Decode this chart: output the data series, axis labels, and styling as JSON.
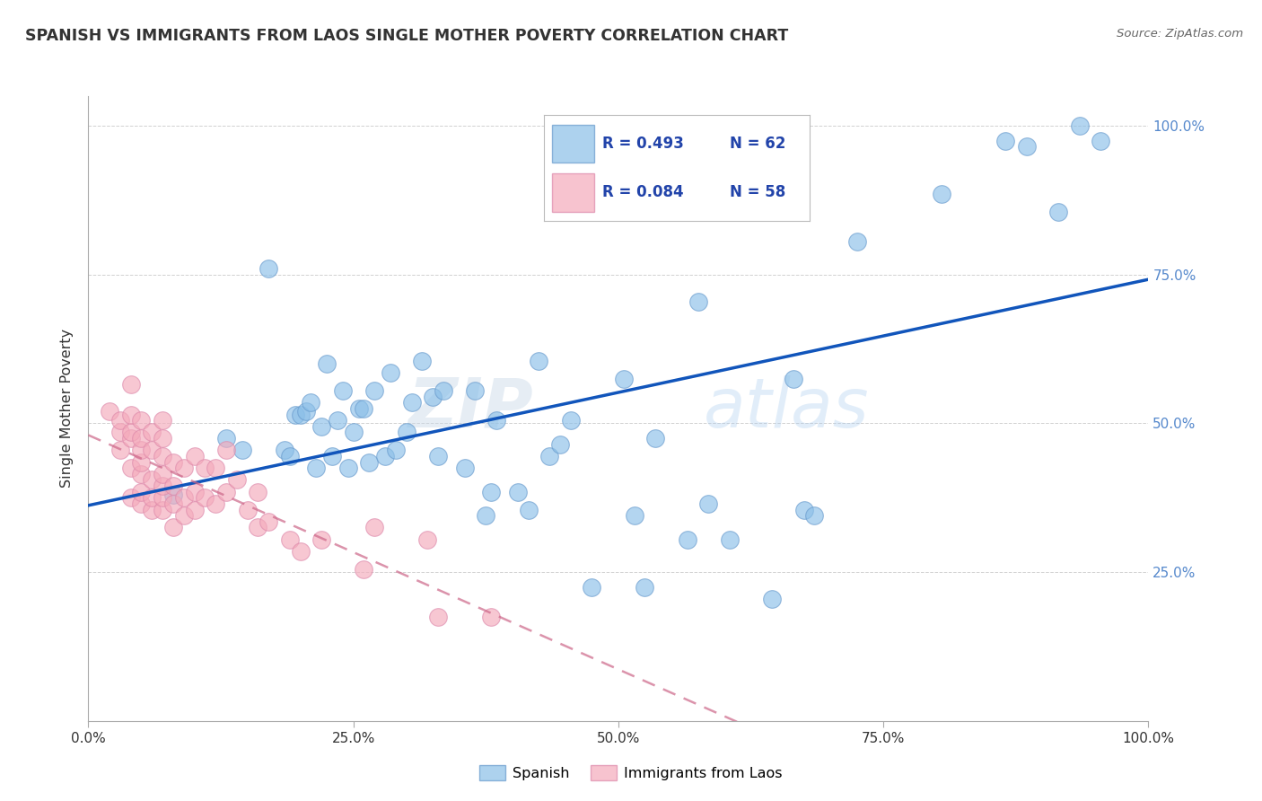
{
  "title": "SPANISH VS IMMIGRANTS FROM LAOS SINGLE MOTHER POVERTY CORRELATION CHART",
  "source": "Source: ZipAtlas.com",
  "ylabel": "Single Mother Poverty",
  "watermark_part1": "ZIP",
  "watermark_part2": "atlas",
  "blue_color": "#8bbfe8",
  "pink_color": "#f4aabb",
  "blue_edge_color": "#6699cc",
  "pink_edge_color": "#dd88aa",
  "blue_line_color": "#1155bb",
  "pink_line_color": "#cc6688",
  "legend_R1": "R = 0.493",
  "legend_N1": "N = 62",
  "legend_R2": "R = 0.084",
  "legend_N2": "N = 58",
  "legend_text_color": "#2244aa",
  "legend_text_dark": "#222222",
  "blue_scatter_x": [
    0.08,
    0.13,
    0.145,
    0.17,
    0.185,
    0.19,
    0.195,
    0.2,
    0.205,
    0.21,
    0.215,
    0.22,
    0.225,
    0.23,
    0.235,
    0.24,
    0.245,
    0.25,
    0.255,
    0.26,
    0.265,
    0.27,
    0.28,
    0.285,
    0.29,
    0.3,
    0.305,
    0.315,
    0.325,
    0.33,
    0.335,
    0.355,
    0.365,
    0.375,
    0.38,
    0.385,
    0.405,
    0.415,
    0.425,
    0.435,
    0.445,
    0.455,
    0.475,
    0.505,
    0.515,
    0.525,
    0.535,
    0.565,
    0.575,
    0.585,
    0.605,
    0.645,
    0.665,
    0.675,
    0.685,
    0.725,
    0.805,
    0.865,
    0.885,
    0.915,
    0.935,
    0.955
  ],
  "blue_scatter_y": [
    0.38,
    0.475,
    0.455,
    0.76,
    0.455,
    0.445,
    0.515,
    0.515,
    0.52,
    0.535,
    0.425,
    0.495,
    0.6,
    0.445,
    0.505,
    0.555,
    0.425,
    0.485,
    0.525,
    0.525,
    0.435,
    0.555,
    0.445,
    0.585,
    0.455,
    0.485,
    0.535,
    0.605,
    0.545,
    0.445,
    0.555,
    0.425,
    0.555,
    0.345,
    0.385,
    0.505,
    0.385,
    0.355,
    0.605,
    0.445,
    0.465,
    0.505,
    0.225,
    0.575,
    0.345,
    0.225,
    0.475,
    0.305,
    0.705,
    0.365,
    0.305,
    0.205,
    0.575,
    0.355,
    0.345,
    0.805,
    0.885,
    0.975,
    0.965,
    0.855,
    1.0,
    0.975
  ],
  "pink_scatter_x": [
    0.02,
    0.03,
    0.03,
    0.03,
    0.04,
    0.04,
    0.04,
    0.04,
    0.04,
    0.04,
    0.05,
    0.05,
    0.05,
    0.05,
    0.05,
    0.05,
    0.05,
    0.06,
    0.06,
    0.06,
    0.06,
    0.06,
    0.07,
    0.07,
    0.07,
    0.07,
    0.07,
    0.07,
    0.07,
    0.08,
    0.08,
    0.08,
    0.08,
    0.09,
    0.09,
    0.09,
    0.1,
    0.1,
    0.1,
    0.11,
    0.11,
    0.12,
    0.12,
    0.13,
    0.13,
    0.14,
    0.15,
    0.16,
    0.16,
    0.17,
    0.19,
    0.2,
    0.22,
    0.26,
    0.27,
    0.32,
    0.33,
    0.38
  ],
  "pink_scatter_y": [
    0.52,
    0.455,
    0.485,
    0.505,
    0.375,
    0.425,
    0.475,
    0.485,
    0.515,
    0.565,
    0.365,
    0.385,
    0.415,
    0.435,
    0.455,
    0.475,
    0.505,
    0.355,
    0.375,
    0.405,
    0.455,
    0.485,
    0.355,
    0.375,
    0.395,
    0.415,
    0.445,
    0.475,
    0.505,
    0.325,
    0.365,
    0.395,
    0.435,
    0.345,
    0.375,
    0.425,
    0.355,
    0.385,
    0.445,
    0.375,
    0.425,
    0.365,
    0.425,
    0.385,
    0.455,
    0.405,
    0.355,
    0.325,
    0.385,
    0.335,
    0.305,
    0.285,
    0.305,
    0.255,
    0.325,
    0.305,
    0.175,
    0.175
  ],
  "background_color": "#ffffff",
  "grid_color": "#cccccc",
  "title_color": "#333333",
  "source_color": "#666666",
  "tick_color": "#333333",
  "right_tick_color": "#5588cc"
}
